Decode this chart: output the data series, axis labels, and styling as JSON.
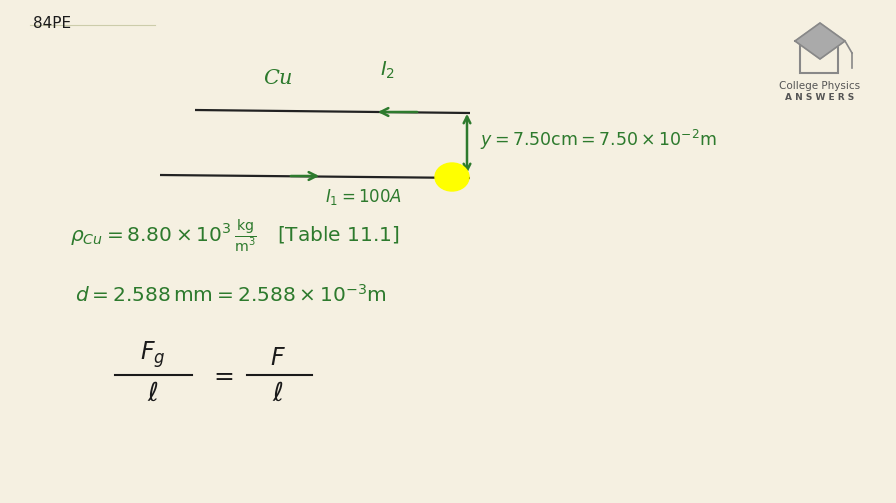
{
  "bg_color": "#f5f0e1",
  "green_color": "#2d7a2d",
  "dark_color": "#1a1a1a",
  "bg_line_color": "#e8e3cf",
  "wire_color": "#222222",
  "title_text": "84PE",
  "logo_text_1": "College Physics",
  "logo_text_2": "A N S W E R S"
}
